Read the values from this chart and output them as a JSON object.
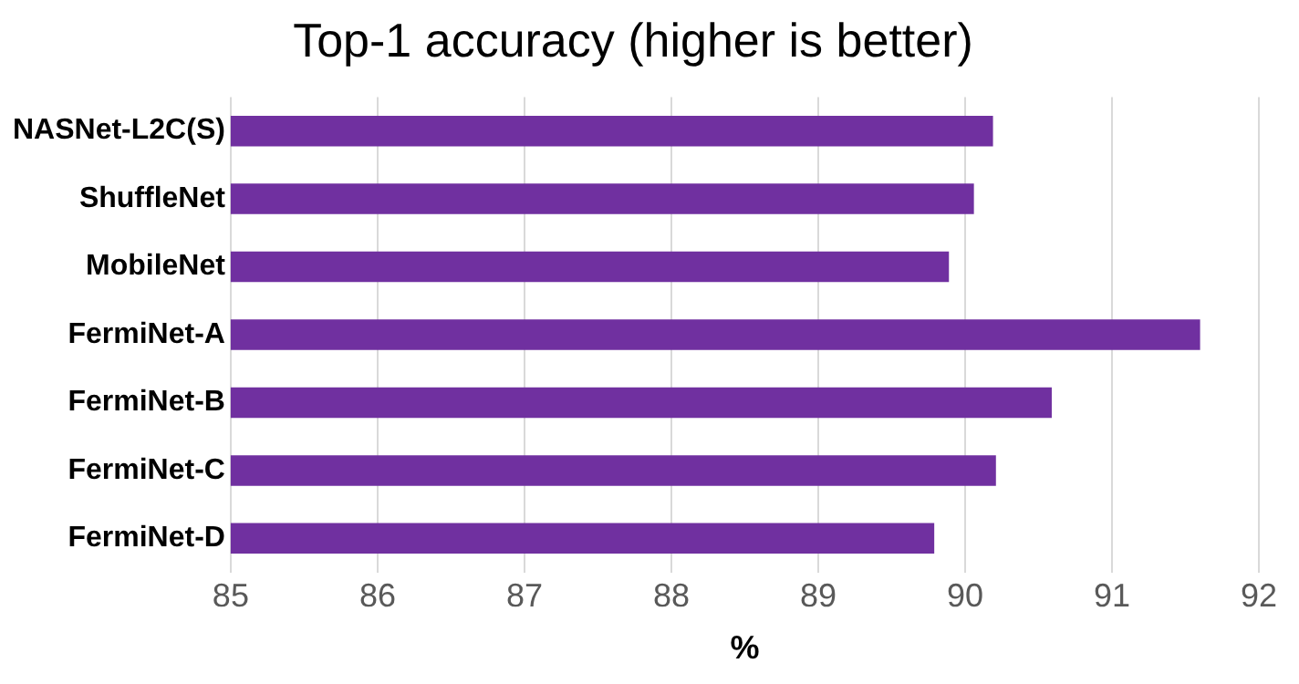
{
  "chart_data": {
    "type": "bar",
    "orientation": "horizontal",
    "title": "Top-1 accuracy (higher is better)",
    "xlabel": "%",
    "categories": [
      "NASNet-L2C(S)",
      "ShuffleNet",
      "MobileNet",
      "FermiNet-A",
      "FermiNet-B",
      "FermiNet-C",
      "FermiNet-D"
    ],
    "values": [
      90.19,
      90.06,
      89.89,
      91.6,
      90.59,
      90.21,
      89.79
    ],
    "color": "#7030a0",
    "xlim": [
      85,
      92
    ],
    "xticks": [
      85,
      86,
      87,
      88,
      89,
      90,
      91,
      92
    ],
    "grid": "x",
    "legend": false
  }
}
